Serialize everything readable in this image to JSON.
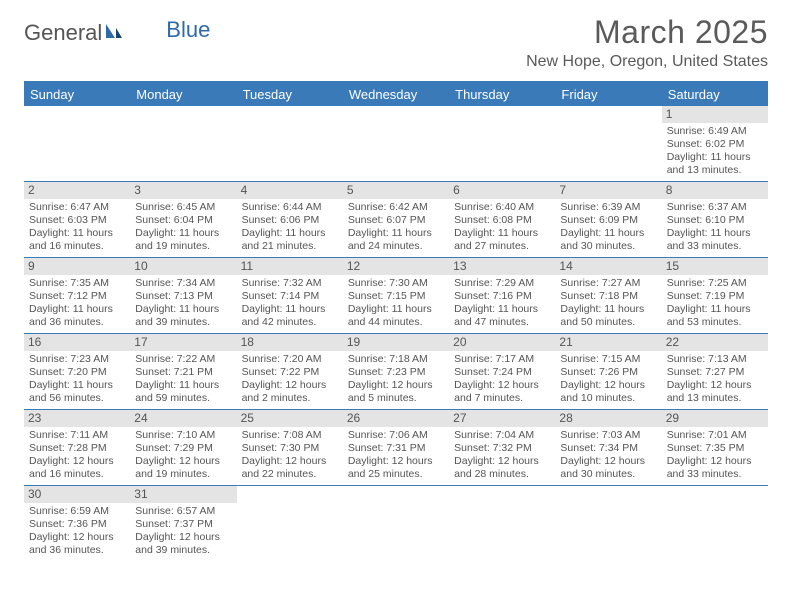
{
  "logo": {
    "part1": "General",
    "part2": "Blue"
  },
  "title": "March 2025",
  "location": "New Hope, Oregon, United States",
  "colors": {
    "header_bg": "#3a7ab8",
    "header_text": "#ffffff",
    "daynum_bg": "#e4e4e4",
    "text": "#555555",
    "logo_blue": "#2f6aa8"
  },
  "dayNames": [
    "Sunday",
    "Monday",
    "Tuesday",
    "Wednesday",
    "Thursday",
    "Friday",
    "Saturday"
  ],
  "weeks": [
    [
      null,
      null,
      null,
      null,
      null,
      null,
      {
        "n": "1",
        "sr": "Sunrise: 6:49 AM",
        "ss": "Sunset: 6:02 PM",
        "d1": "Daylight: 11 hours",
        "d2": "and 13 minutes."
      }
    ],
    [
      {
        "n": "2",
        "sr": "Sunrise: 6:47 AM",
        "ss": "Sunset: 6:03 PM",
        "d1": "Daylight: 11 hours",
        "d2": "and 16 minutes."
      },
      {
        "n": "3",
        "sr": "Sunrise: 6:45 AM",
        "ss": "Sunset: 6:04 PM",
        "d1": "Daylight: 11 hours",
        "d2": "and 19 minutes."
      },
      {
        "n": "4",
        "sr": "Sunrise: 6:44 AM",
        "ss": "Sunset: 6:06 PM",
        "d1": "Daylight: 11 hours",
        "d2": "and 21 minutes."
      },
      {
        "n": "5",
        "sr": "Sunrise: 6:42 AM",
        "ss": "Sunset: 6:07 PM",
        "d1": "Daylight: 11 hours",
        "d2": "and 24 minutes."
      },
      {
        "n": "6",
        "sr": "Sunrise: 6:40 AM",
        "ss": "Sunset: 6:08 PM",
        "d1": "Daylight: 11 hours",
        "d2": "and 27 minutes."
      },
      {
        "n": "7",
        "sr": "Sunrise: 6:39 AM",
        "ss": "Sunset: 6:09 PM",
        "d1": "Daylight: 11 hours",
        "d2": "and 30 minutes."
      },
      {
        "n": "8",
        "sr": "Sunrise: 6:37 AM",
        "ss": "Sunset: 6:10 PM",
        "d1": "Daylight: 11 hours",
        "d2": "and 33 minutes."
      }
    ],
    [
      {
        "n": "9",
        "sr": "Sunrise: 7:35 AM",
        "ss": "Sunset: 7:12 PM",
        "d1": "Daylight: 11 hours",
        "d2": "and 36 minutes."
      },
      {
        "n": "10",
        "sr": "Sunrise: 7:34 AM",
        "ss": "Sunset: 7:13 PM",
        "d1": "Daylight: 11 hours",
        "d2": "and 39 minutes."
      },
      {
        "n": "11",
        "sr": "Sunrise: 7:32 AM",
        "ss": "Sunset: 7:14 PM",
        "d1": "Daylight: 11 hours",
        "d2": "and 42 minutes."
      },
      {
        "n": "12",
        "sr": "Sunrise: 7:30 AM",
        "ss": "Sunset: 7:15 PM",
        "d1": "Daylight: 11 hours",
        "d2": "and 44 minutes."
      },
      {
        "n": "13",
        "sr": "Sunrise: 7:29 AM",
        "ss": "Sunset: 7:16 PM",
        "d1": "Daylight: 11 hours",
        "d2": "and 47 minutes."
      },
      {
        "n": "14",
        "sr": "Sunrise: 7:27 AM",
        "ss": "Sunset: 7:18 PM",
        "d1": "Daylight: 11 hours",
        "d2": "and 50 minutes."
      },
      {
        "n": "15",
        "sr": "Sunrise: 7:25 AM",
        "ss": "Sunset: 7:19 PM",
        "d1": "Daylight: 11 hours",
        "d2": "and 53 minutes."
      }
    ],
    [
      {
        "n": "16",
        "sr": "Sunrise: 7:23 AM",
        "ss": "Sunset: 7:20 PM",
        "d1": "Daylight: 11 hours",
        "d2": "and 56 minutes."
      },
      {
        "n": "17",
        "sr": "Sunrise: 7:22 AM",
        "ss": "Sunset: 7:21 PM",
        "d1": "Daylight: 11 hours",
        "d2": "and 59 minutes."
      },
      {
        "n": "18",
        "sr": "Sunrise: 7:20 AM",
        "ss": "Sunset: 7:22 PM",
        "d1": "Daylight: 12 hours",
        "d2": "and 2 minutes."
      },
      {
        "n": "19",
        "sr": "Sunrise: 7:18 AM",
        "ss": "Sunset: 7:23 PM",
        "d1": "Daylight: 12 hours",
        "d2": "and 5 minutes."
      },
      {
        "n": "20",
        "sr": "Sunrise: 7:17 AM",
        "ss": "Sunset: 7:24 PM",
        "d1": "Daylight: 12 hours",
        "d2": "and 7 minutes."
      },
      {
        "n": "21",
        "sr": "Sunrise: 7:15 AM",
        "ss": "Sunset: 7:26 PM",
        "d1": "Daylight: 12 hours",
        "d2": "and 10 minutes."
      },
      {
        "n": "22",
        "sr": "Sunrise: 7:13 AM",
        "ss": "Sunset: 7:27 PM",
        "d1": "Daylight: 12 hours",
        "d2": "and 13 minutes."
      }
    ],
    [
      {
        "n": "23",
        "sr": "Sunrise: 7:11 AM",
        "ss": "Sunset: 7:28 PM",
        "d1": "Daylight: 12 hours",
        "d2": "and 16 minutes."
      },
      {
        "n": "24",
        "sr": "Sunrise: 7:10 AM",
        "ss": "Sunset: 7:29 PM",
        "d1": "Daylight: 12 hours",
        "d2": "and 19 minutes."
      },
      {
        "n": "25",
        "sr": "Sunrise: 7:08 AM",
        "ss": "Sunset: 7:30 PM",
        "d1": "Daylight: 12 hours",
        "d2": "and 22 minutes."
      },
      {
        "n": "26",
        "sr": "Sunrise: 7:06 AM",
        "ss": "Sunset: 7:31 PM",
        "d1": "Daylight: 12 hours",
        "d2": "and 25 minutes."
      },
      {
        "n": "27",
        "sr": "Sunrise: 7:04 AM",
        "ss": "Sunset: 7:32 PM",
        "d1": "Daylight: 12 hours",
        "d2": "and 28 minutes."
      },
      {
        "n": "28",
        "sr": "Sunrise: 7:03 AM",
        "ss": "Sunset: 7:34 PM",
        "d1": "Daylight: 12 hours",
        "d2": "and 30 minutes."
      },
      {
        "n": "29",
        "sr": "Sunrise: 7:01 AM",
        "ss": "Sunset: 7:35 PM",
        "d1": "Daylight: 12 hours",
        "d2": "and 33 minutes."
      }
    ],
    [
      {
        "n": "30",
        "sr": "Sunrise: 6:59 AM",
        "ss": "Sunset: 7:36 PM",
        "d1": "Daylight: 12 hours",
        "d2": "and 36 minutes."
      },
      {
        "n": "31",
        "sr": "Sunrise: 6:57 AM",
        "ss": "Sunset: 7:37 PM",
        "d1": "Daylight: 12 hours",
        "d2": "and 39 minutes."
      },
      null,
      null,
      null,
      null,
      null
    ]
  ]
}
